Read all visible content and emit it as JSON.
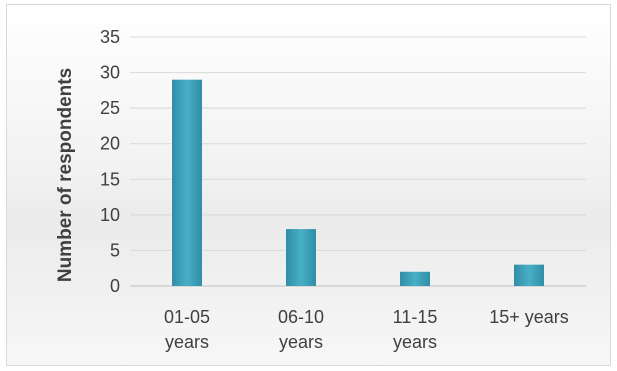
{
  "chart_data": {
    "type": "bar",
    "title": "",
    "xlabel": "",
    "ylabel": "Number of respondents",
    "categories": [
      [
        "01-05",
        "years"
      ],
      [
        "06-10",
        "years"
      ],
      [
        "11-15",
        "years"
      ],
      [
        "15+ years"
      ]
    ],
    "values": [
      29,
      8,
      2,
      3
    ],
    "ylim": [
      0,
      35
    ],
    "yticks": [
      0,
      5,
      10,
      15,
      20,
      25,
      30,
      35
    ],
    "grid": true,
    "legend": "none",
    "bar_color": "#3a9db5"
  }
}
